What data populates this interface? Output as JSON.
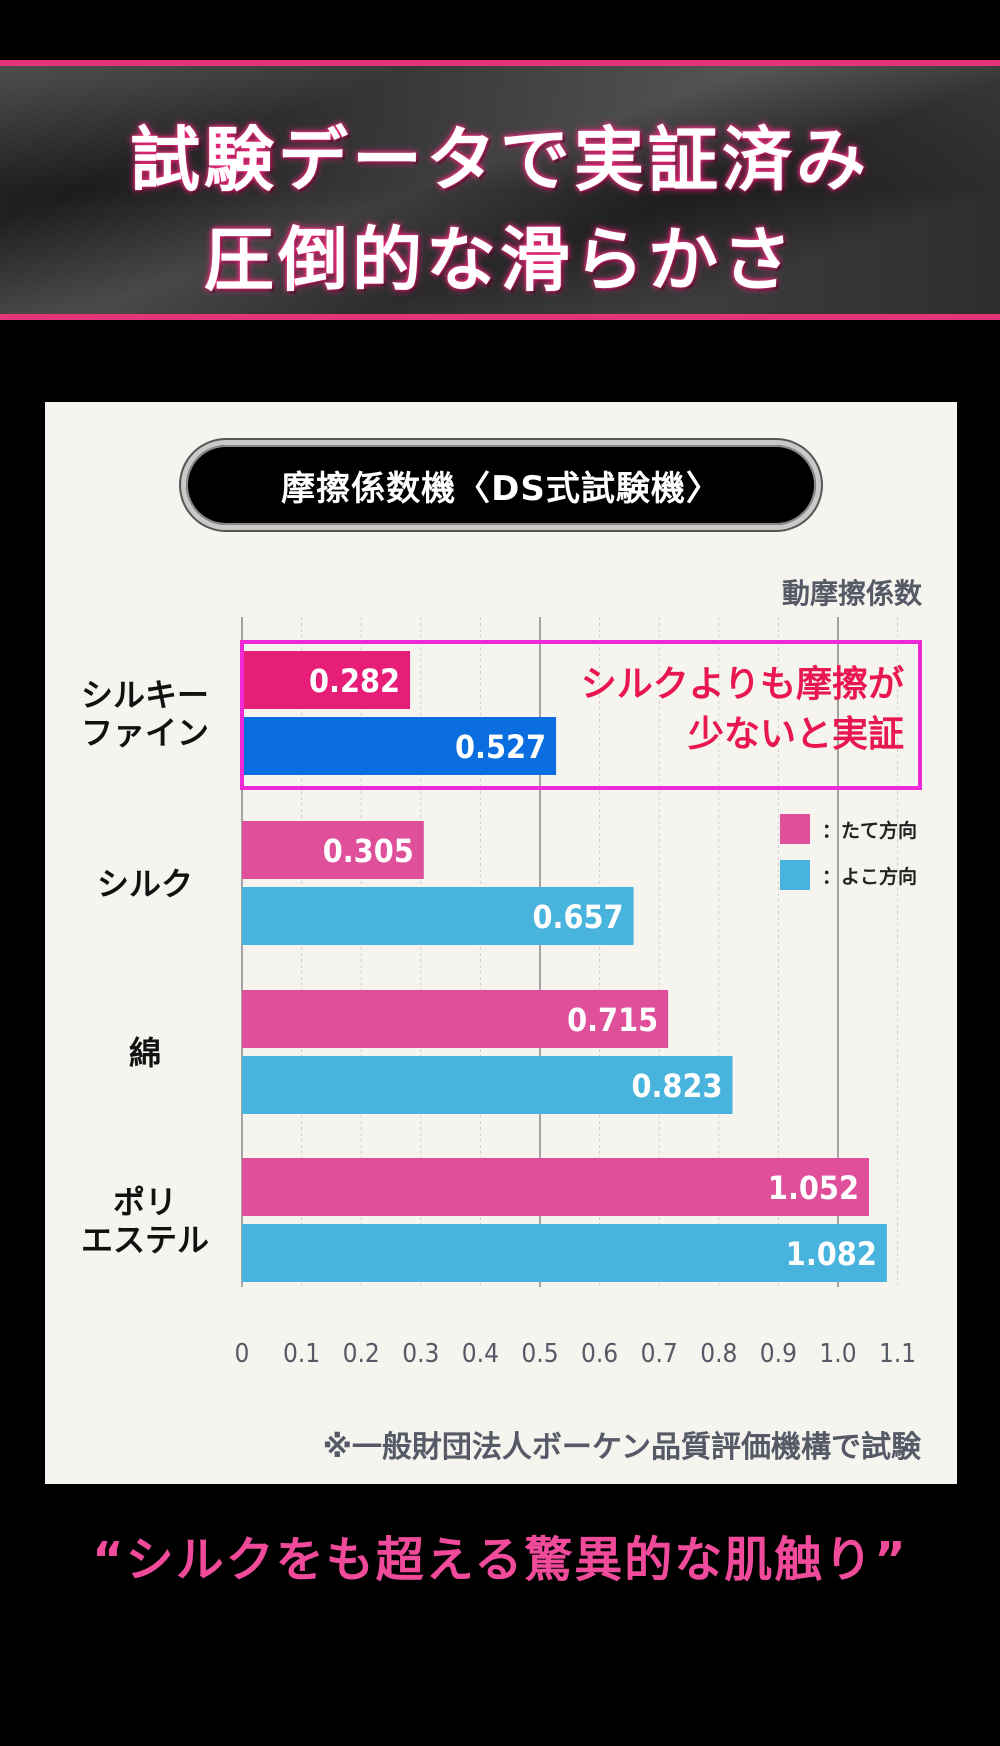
{
  "banner": {
    "line1": "試験データで実証済み",
    "line2": "圧倒的な滑らかさ"
  },
  "chart_header": {
    "pill_title": "摩擦係数機〈DS式試験機〉",
    "axis_title": "動摩擦係数"
  },
  "callout": {
    "line1": "シルクよりも摩擦が",
    "line2": "少ないと実証"
  },
  "legend": [
    {
      "marker": "：",
      "label": "たて方向",
      "color": "#e0509a"
    },
    {
      "marker": "：",
      "label": "よこ方向",
      "color": "#48b3dc"
    }
  ],
  "source_note": "※一般財団法人ボーケン品質評価機構で試験",
  "tagline": "“シルクをも超える驚異的な肌触り”",
  "colors": {
    "highlight_vertical": "#e61e78",
    "highlight_horizontal": "#0a6ee0",
    "vertical": "#e0509a",
    "horizontal": "#48b3dc",
    "accent": "#e8327a"
  },
  "chart_data": {
    "type": "bar",
    "orientation": "horizontal",
    "title": "摩擦係数機〈DS式試験機〉",
    "xlabel": "動摩擦係数",
    "xlim": [
      0,
      1.1
    ],
    "ticks": [
      "0",
      "0.1",
      "0.2",
      "0.3",
      "0.4",
      "0.5",
      "0.6",
      "0.7",
      "0.8",
      "0.9",
      "1.0",
      "1.1"
    ],
    "categories": [
      {
        "lines": [
          "シルキー",
          "ファイン"
        ]
      },
      {
        "lines": [
          "シルク"
        ]
      },
      {
        "lines": [
          "綿"
        ]
      },
      {
        "lines": [
          "ポリ",
          "エステル"
        ]
      }
    ],
    "series": [
      {
        "name": "たて方向",
        "values": [
          0.282,
          0.305,
          0.715,
          1.052
        ],
        "labels": [
          "0.282",
          "0.305",
          "0.715",
          "1.052"
        ]
      },
      {
        "name": "よこ方向",
        "values": [
          0.527,
          0.657,
          0.823,
          1.082
        ],
        "labels": [
          "0.527",
          "0.657",
          "0.823",
          "1.082"
        ]
      }
    ]
  }
}
